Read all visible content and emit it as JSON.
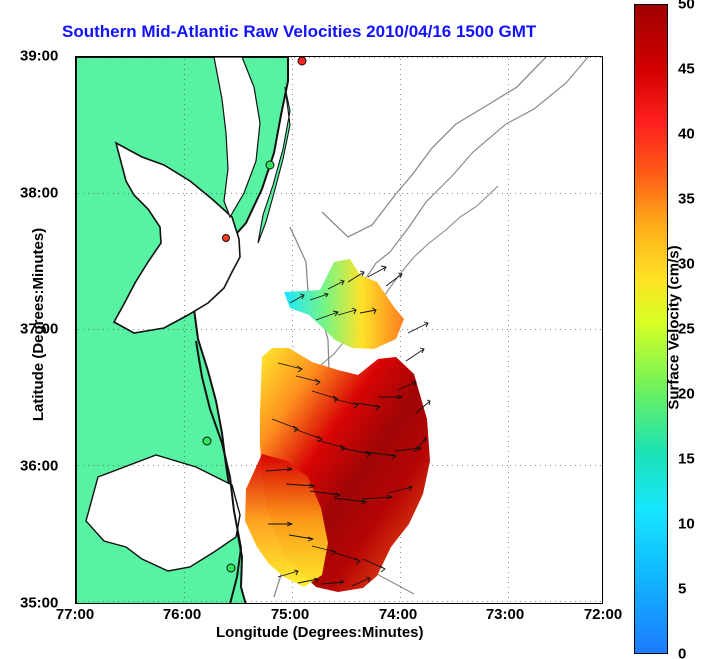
{
  "title": "Southern Mid-Atlantic Raw Velocities 2010/04/16 1500 GMT",
  "map": {
    "xaxis_label": "Longitude (Degrees:Minutes)",
    "yaxis_label": "Latitude (Degrees:Minutes)",
    "x_ticks": [
      "77:00",
      "76:00",
      "75:00",
      "74:00",
      "73:00",
      "72:00"
    ],
    "y_ticks": [
      "39:00",
      "38:00",
      "37:00",
      "36:00",
      "35:00"
    ],
    "colorbar": {
      "label": "Surface Velocity (cm/s)",
      "ticks": [
        "50",
        "45",
        "40",
        "35",
        "30",
        "25",
        "20",
        "15",
        "10",
        "5",
        "0"
      ],
      "min": 0,
      "max": 50
    },
    "colors": {
      "land": "#58f2a3",
      "coast": "#0f0f0f",
      "bathy": "#8a8a8a",
      "title_blue": "#1212ff",
      "vector": "#111111"
    }
  }
}
